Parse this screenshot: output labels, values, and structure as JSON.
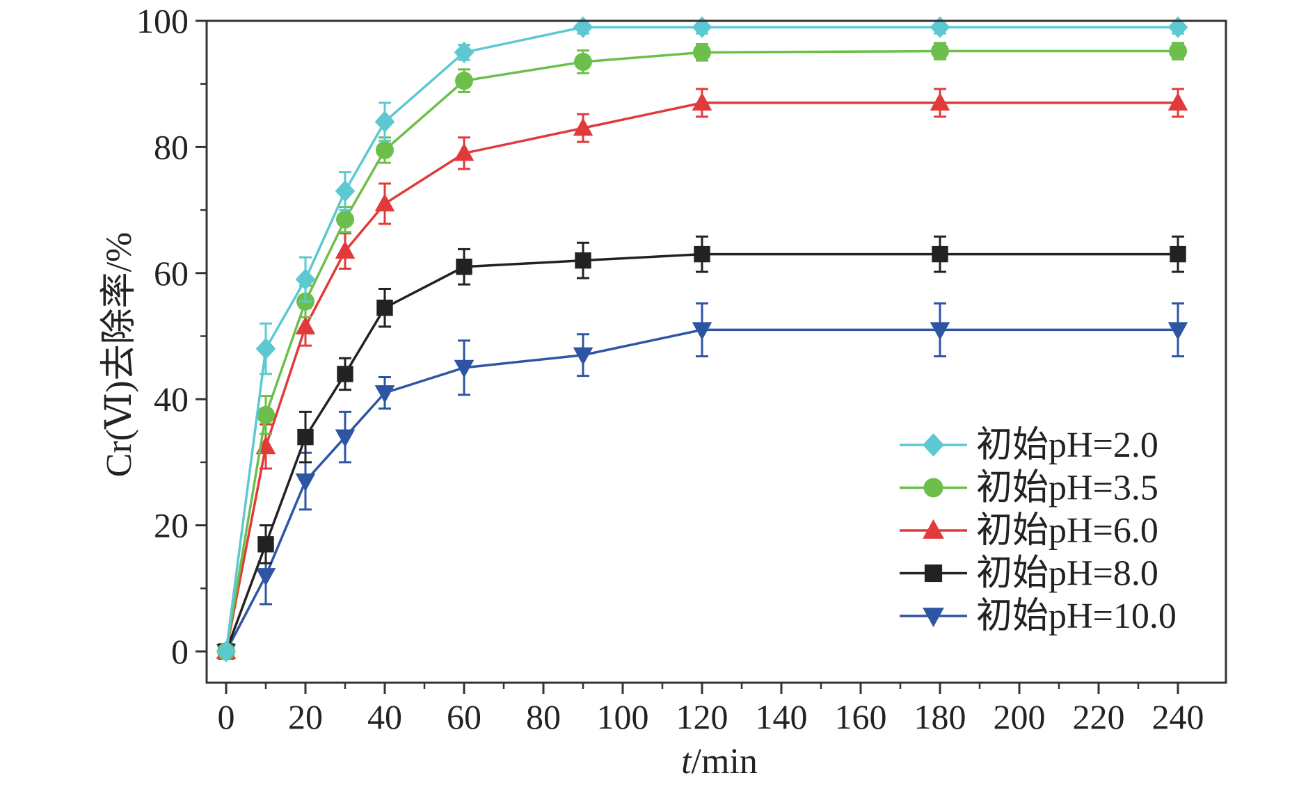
{
  "chart_data": {
    "type": "line",
    "xlabel": "t/min",
    "xlabel_parts": {
      "var": "t",
      "unit": "/min"
    },
    "ylabel": "Cr(Ⅵ)去除率/%",
    "xlim": [
      0,
      250
    ],
    "ylim": [
      -5,
      100
    ],
    "xticks": [
      0,
      20,
      40,
      60,
      80,
      100,
      120,
      140,
      160,
      180,
      200,
      220,
      240
    ],
    "yticks": [
      0,
      20,
      40,
      60,
      80,
      100
    ],
    "grid": false,
    "legend_position": "bottom-right",
    "x": [
      0,
      10,
      20,
      30,
      40,
      60,
      90,
      120,
      180,
      240
    ],
    "series": [
      {
        "name": "初始pH=2.0",
        "color": "#5BC8D2",
        "marker": "diamond",
        "values": [
          0,
          48,
          59,
          73,
          84,
          95,
          99,
          99,
          99,
          99
        ],
        "errors": [
          0,
          4,
          3.5,
          3,
          3,
          1.2,
          1,
          1,
          1,
          1
        ]
      },
      {
        "name": "初始pH=3.5",
        "color": "#6BBF4A",
        "marker": "circle",
        "values": [
          0,
          37.5,
          55.5,
          68.5,
          79.5,
          90.5,
          93.5,
          95,
          95.2,
          95.2
        ],
        "errors": [
          0,
          3,
          2.5,
          2,
          2,
          1.8,
          1.8,
          1.3,
          1.3,
          1.3
        ]
      },
      {
        "name": "初始pH=6.0",
        "color": "#E23A3A",
        "marker": "triangle-up",
        "values": [
          0,
          32.5,
          51.5,
          63.5,
          71,
          79,
          83,
          87,
          87,
          87
        ],
        "errors": [
          0,
          3.5,
          3,
          2.8,
          3.2,
          2.5,
          2.2,
          2.2,
          2.2,
          2.2
        ]
      },
      {
        "name": "初始pH=8.0",
        "color": "#222222",
        "marker": "square",
        "values": [
          0,
          17,
          34,
          44,
          54.5,
          61,
          62,
          63,
          63,
          63
        ],
        "errors": [
          0,
          3,
          4,
          2.5,
          3,
          2.8,
          2.8,
          2.8,
          2.8,
          2.8
        ]
      },
      {
        "name": "初始pH=10.0",
        "color": "#2E55A3",
        "marker": "triangle-down",
        "values": [
          0,
          12,
          27,
          34,
          41,
          45,
          47,
          51,
          51,
          51
        ],
        "errors": [
          0,
          4.5,
          4.5,
          4,
          2.5,
          4.3,
          3.3,
          4.2,
          4.2,
          4.2
        ]
      }
    ]
  }
}
